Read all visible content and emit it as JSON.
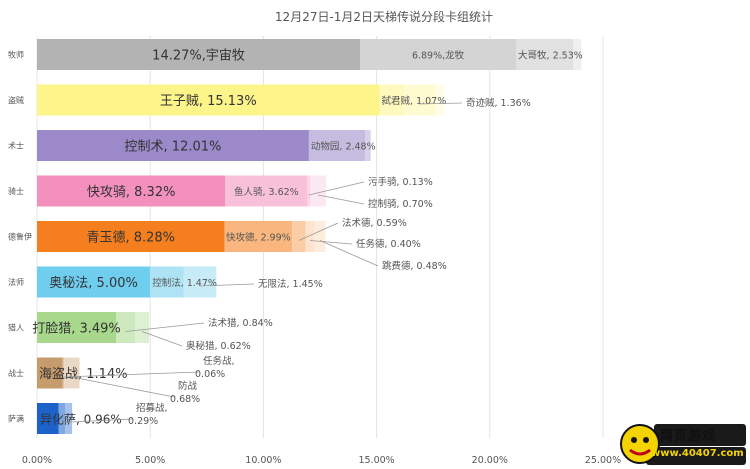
{
  "chart_data": {
    "type": "bar",
    "title": "12月27日-1月2日天梯传说分段卡组统计",
    "xlim": [
      0,
      25
    ],
    "x_ticks": [
      "0.00%",
      "5.00%",
      "10.00%",
      "15.00%",
      "20.00%",
      "25.00%"
    ],
    "grid": true,
    "classes": [
      {
        "name": "牧师",
        "color": "#b3b3b3",
        "decks": [
          {
            "label": "14.27%,宇宙牧",
            "value": 14.27
          },
          {
            "label": "6.89%,龙牧",
            "value": 6.89
          },
          {
            "label": "大哥牧, 2.53%",
            "value": 2.53
          },
          {
            "label": "",
            "value": 0.35
          }
        ]
      },
      {
        "name": "盗贼",
        "color": "#fdf48a",
        "decks": [
          {
            "label": "王子贼, 15.13%",
            "value": 15.13
          },
          {
            "label": "弑君贼, 1.07%",
            "value": 1.07
          },
          {
            "label": "奇迹贼, 1.36%",
            "value": 1.36
          },
          {
            "label": "",
            "value": 0.4
          }
        ]
      },
      {
        "name": "术士",
        "color": "#9b89c9",
        "decks": [
          {
            "label": "控制术, 12.01%",
            "value": 12.01
          },
          {
            "label": "动物园, 2.48%",
            "value": 2.48
          },
          {
            "label": "",
            "value": 0.25
          }
        ]
      },
      {
        "name": "骑士",
        "color": "#f390bd",
        "decks": [
          {
            "label": "快攻骑, 8.32%",
            "value": 8.32
          },
          {
            "label": "鱼人骑, 3.62%",
            "value": 3.62
          },
          {
            "label": "污手骑, 0.13%",
            "value": 0.13
          },
          {
            "label": "控制骑, 0.70%",
            "value": 0.7
          }
        ]
      },
      {
        "name": "德鲁伊",
        "color": "#f57f1e",
        "decks": [
          {
            "label": "青玉德, 8.28%",
            "value": 8.28
          },
          {
            "label": "快攻德, 2.99%",
            "value": 2.99
          },
          {
            "label": "法术德, 0.59%",
            "value": 0.59
          },
          {
            "label": "任务德, 0.40%",
            "value": 0.4
          },
          {
            "label": "跳费德, 0.48%",
            "value": 0.48
          }
        ]
      },
      {
        "name": "法师",
        "color": "#6fcdee",
        "decks": [
          {
            "label": "奥秘法, 5.00%",
            "value": 5.0
          },
          {
            "label": "控制法, 1.47%",
            "value": 1.47
          },
          {
            "label": "无限法, 1.45%",
            "value": 1.45
          }
        ]
      },
      {
        "name": "猎人",
        "color": "#a7d88c",
        "decks": [
          {
            "label": "打脸猎, 3.49%",
            "value": 3.49
          },
          {
            "label": "法术猎, 0.84%",
            "value": 0.84
          },
          {
            "label": "奥秘猎, 0.62%",
            "value": 0.62
          }
        ]
      },
      {
        "name": "战士",
        "color": "#c69c6d",
        "decks": [
          {
            "label": "海盗战, 1.14%",
            "value": 1.14
          },
          {
            "label": "任务战, 0.06%",
            "value": 0.06
          },
          {
            "label": "防战 0.68%",
            "value": 0.68
          }
        ]
      },
      {
        "name": "萨满",
        "color": "#1c62c9",
        "decks": [
          {
            "label": "异化萨, 0.96%",
            "value": 0.96
          },
          {
            "label": "招募战, 0.29%",
            "value": 0.29
          },
          {
            "label": "",
            "value": 0.3
          }
        ]
      }
    ]
  },
  "watermark": {
    "name": "网页游戏",
    "url": "www.40407.com",
    "icon": "fist-mascot-icon"
  }
}
